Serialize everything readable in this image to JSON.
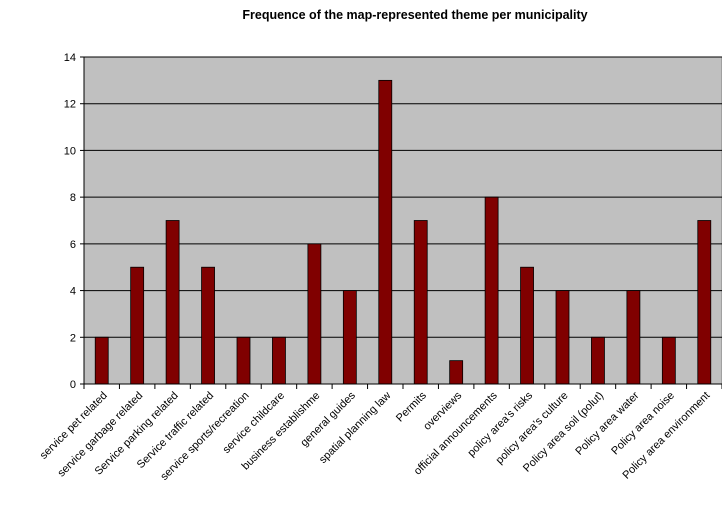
{
  "chart_data": {
    "type": "bar",
    "title": "Frequence of the map-represented theme per municipality",
    "xlabel": "",
    "ylabel": "",
    "ylim": [
      0,
      14
    ],
    "yticks": [
      0,
      2,
      4,
      6,
      8,
      10,
      12,
      14
    ],
    "grid": true,
    "legend": "none",
    "categories": [
      "service pet related",
      "service garbage related",
      "Service parking related",
      "Service traffic related",
      "service sports/recreation",
      "service childcare",
      "business establishme",
      "general guides",
      "spatial planning law",
      "Permits",
      "overviews",
      "official announcements",
      "policy area's risks",
      "policy area's culture",
      "Policy area soil (polut)",
      "Policy area water",
      "Policy area noise",
      "Policy area environment"
    ],
    "values": [
      2,
      5,
      7,
      5,
      2,
      2,
      6,
      4,
      13,
      7,
      1,
      8,
      5,
      4,
      2,
      4,
      2,
      7
    ],
    "colors": {
      "plot_background": "#c0c0c0",
      "bar": "#800000",
      "bar_border": "#000000",
      "gridline": "#000000"
    }
  }
}
